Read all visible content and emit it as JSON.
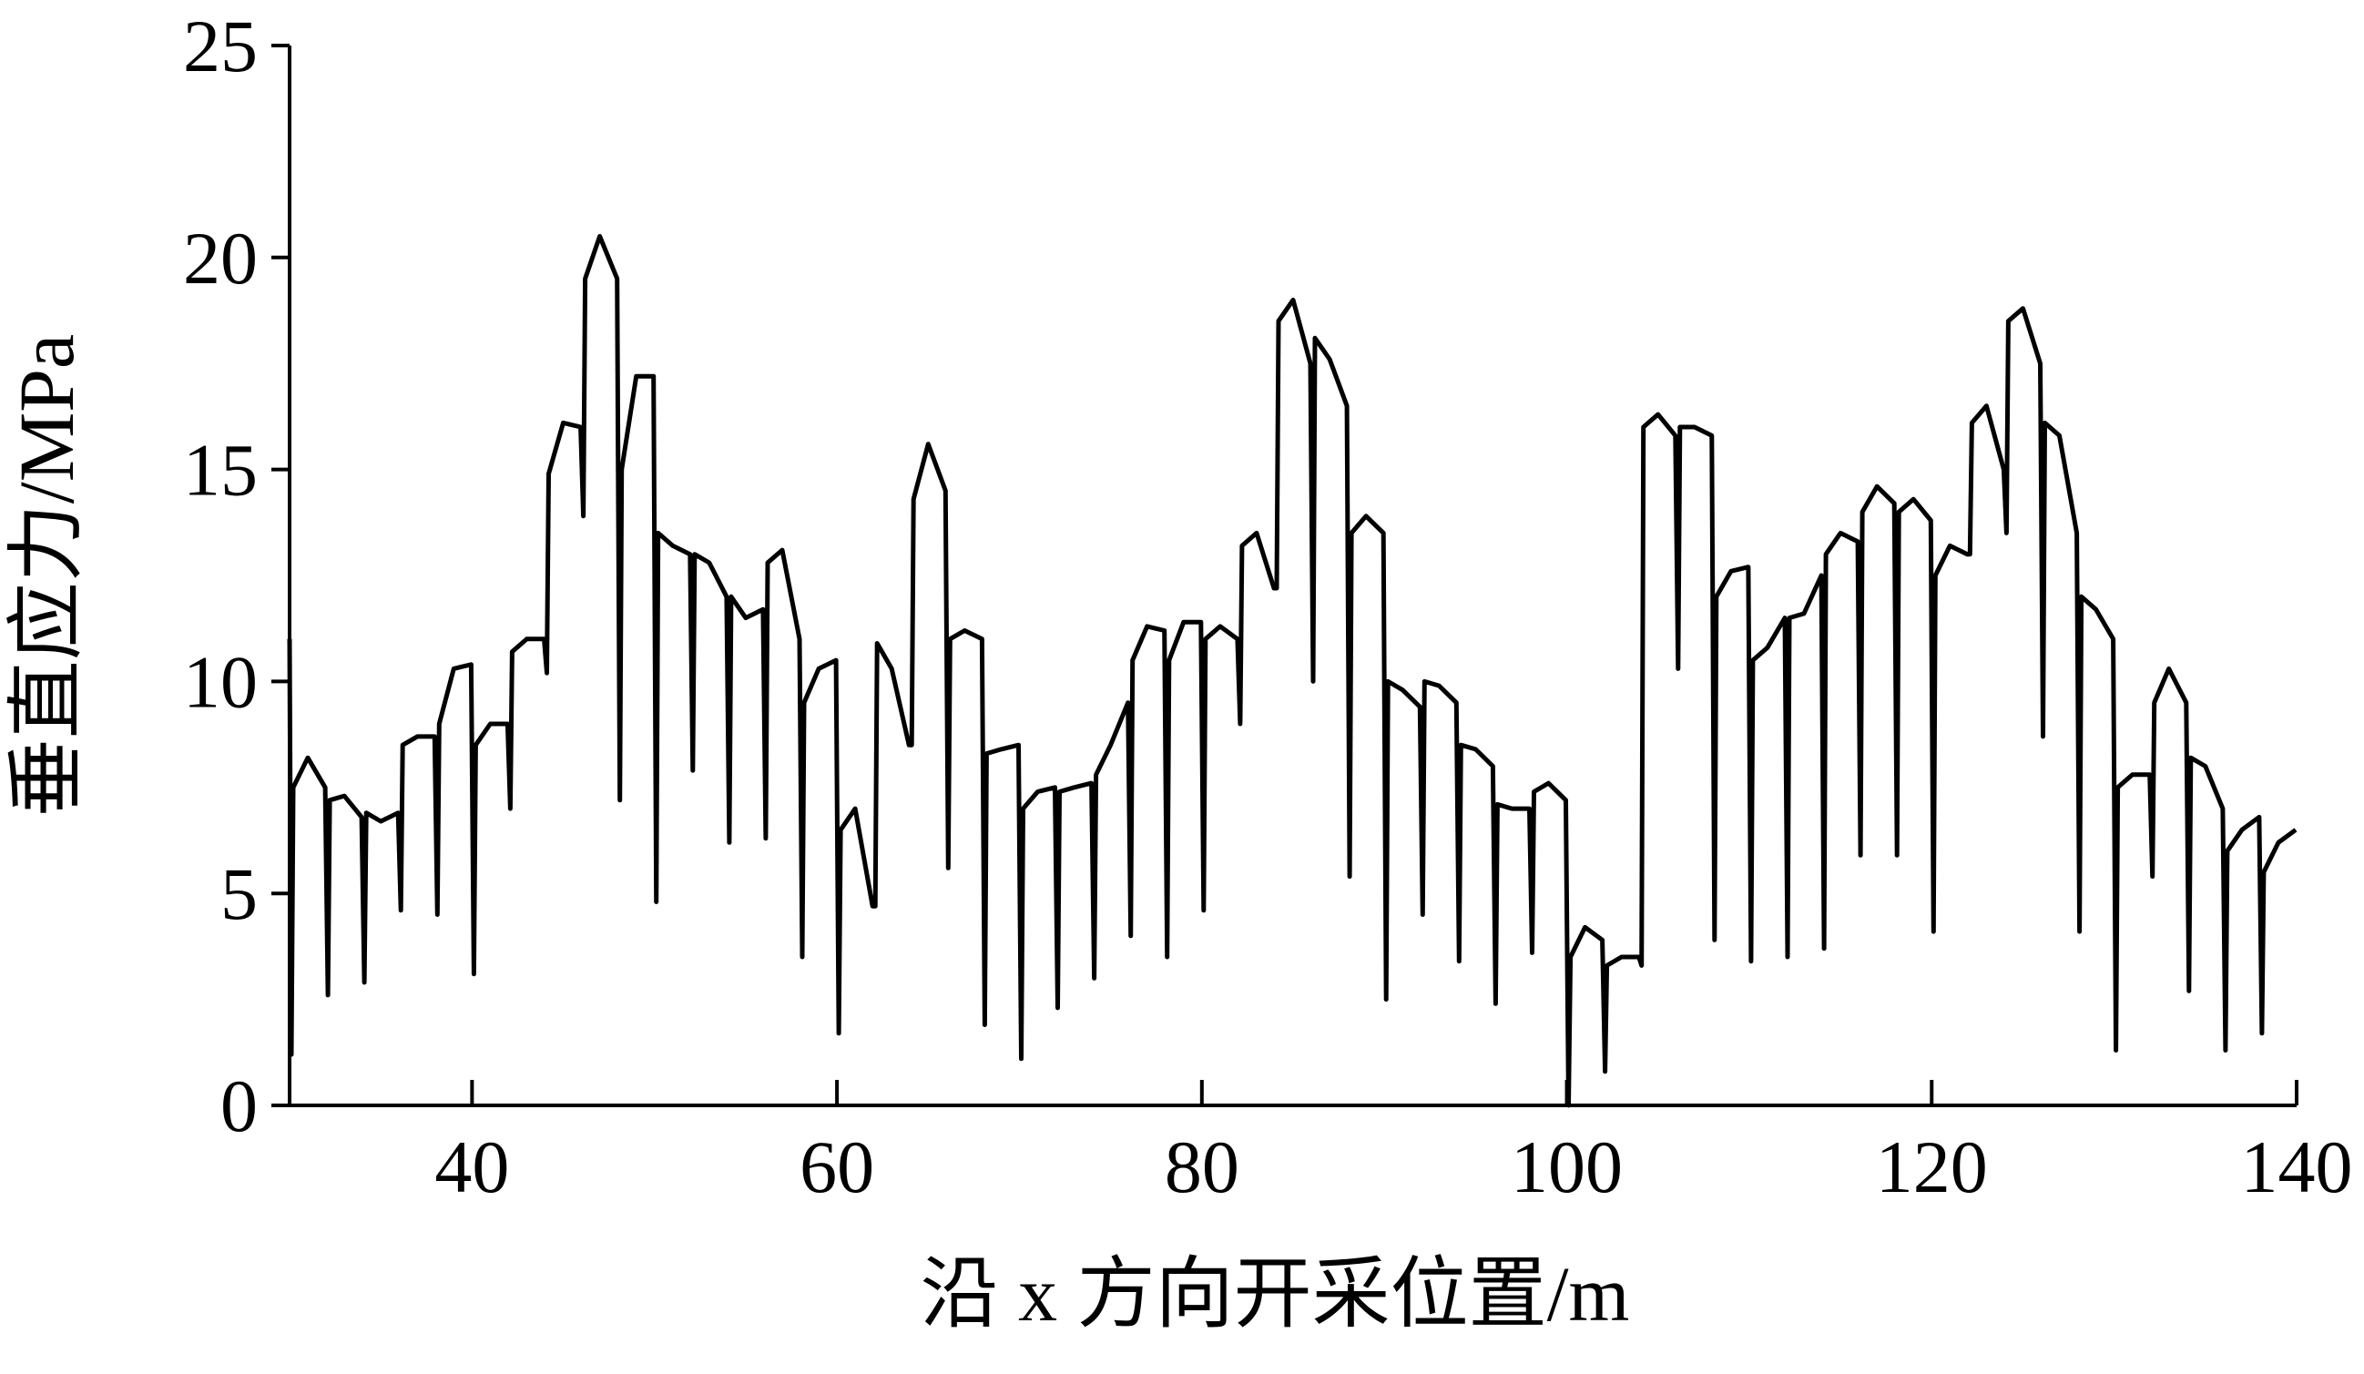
{
  "chart_data": {
    "type": "line",
    "xlabel": "沿 x 方向开采位置/m",
    "ylabel": "垂直应力/MPa",
    "xlim": [
      30,
      140
    ],
    "xticks": [
      40,
      60,
      80,
      100,
      120,
      140
    ],
    "ylim": [
      0,
      25
    ],
    "yticks": [
      0,
      5,
      10,
      15,
      20,
      25
    ],
    "grid": false,
    "series": [
      {
        "color": "#000000",
        "x": [
          30,
          30.1,
          30.2,
          31,
          31.95,
          32.1,
          32.2,
          33,
          33.95,
          34.1,
          34.2,
          35,
          35.95,
          36.1,
          36.2,
          37,
          37.95,
          38.1,
          38.2,
          39,
          39.95,
          40.1,
          40.2,
          41,
          41.95,
          42.1,
          42.2,
          43,
          43.95,
          44.1,
          44.2,
          45,
          45.95,
          46.1,
          46.2,
          47,
          47.95,
          48.1,
          48.2,
          49,
          49.95,
          50.1,
          50.2,
          51,
          51.95,
          52.1,
          52.2,
          53,
          53.95,
          54.1,
          54.2,
          55,
          55.95,
          56.1,
          56.2,
          57,
          57.95,
          58.1,
          58.2,
          59,
          59.95,
          60.1,
          60.2,
          61,
          61.95,
          62.1,
          62.2,
          63,
          63.95,
          64.1,
          64.2,
          65,
          65.95,
          66.1,
          66.2,
          67,
          67.95,
          68.1,
          68.2,
          69,
          69.95,
          70.1,
          70.2,
          71,
          71.95,
          72.1,
          72.2,
          73,
          73.95,
          74.1,
          74.2,
          75,
          75.95,
          76.1,
          76.2,
          77,
          77.95,
          78.1,
          78.2,
          79,
          79.95,
          80.1,
          80.2,
          81,
          81.95,
          82.1,
          82.2,
          83,
          83.95,
          84.1,
          84.2,
          85,
          85.95,
          86.1,
          86.2,
          87,
          87.95,
          88.1,
          88.2,
          89,
          89.95,
          90.1,
          90.2,
          91,
          91.95,
          92.1,
          92.2,
          93,
          93.95,
          94.1,
          94.2,
          95,
          95.95,
          96.1,
          96.2,
          97,
          97.95,
          98.1,
          98.2,
          99,
          99.95,
          100.1,
          100.2,
          101,
          101.95,
          102.1,
          102.2,
          103,
          103.95,
          104.1,
          104.2,
          105,
          105.95,
          106.1,
          106.2,
          107,
          107.95,
          108.1,
          108.2,
          109,
          109.95,
          110.1,
          110.2,
          111,
          111.95,
          112.1,
          112.2,
          113,
          113.95,
          114.1,
          114.2,
          115,
          115.95,
          116.1,
          116.2,
          117,
          117.95,
          118.1,
          118.2,
          119,
          119.95,
          120.1,
          120.2,
          121,
          121.95,
          122.1,
          122.2,
          123,
          123.95,
          124.1,
          124.2,
          125,
          125.95,
          126.1,
          126.2,
          127,
          127.95,
          128.1,
          128.2,
          129,
          129.95,
          130.1,
          130.2,
          131,
          131.95,
          132.1,
          132.2,
          133,
          133.95,
          134.1,
          134.2,
          135,
          135.95,
          136.1,
          136.2,
          137,
          137.95,
          138.1,
          138.2,
          139,
          139.95
        ],
        "values": [
          11,
          1.2,
          7.5,
          8.2,
          7.5,
          2.6,
          7.2,
          7.3,
          6.8,
          2.9,
          6.9,
          6.7,
          6.9,
          4.6,
          8.5,
          8.7,
          8.7,
          4.5,
          9.0,
          10.3,
          10.4,
          3.1,
          8.5,
          9.0,
          9.0,
          7.0,
          10.7,
          11.0,
          11.0,
          10.2,
          14.9,
          16.1,
          16.0,
          13.9,
          19.5,
          20.5,
          19.5,
          7.2,
          15.0,
          17.2,
          17.2,
          4.8,
          13.5,
          13.2,
          13.0,
          7.9,
          13.0,
          12.8,
          12.0,
          6.2,
          12.0,
          11.5,
          11.7,
          6.3,
          12.8,
          13.1,
          11.0,
          3.5,
          9.5,
          10.3,
          10.5,
          1.7,
          6.5,
          7.0,
          4.7,
          4.7,
          10.9,
          10.3,
          8.5,
          8.5,
          14.3,
          15.6,
          14.5,
          5.6,
          11.0,
          11.2,
          11.0,
          1.9,
          8.3,
          8.4,
          8.5,
          1.1,
          7.0,
          7.4,
          7.5,
          2.3,
          7.4,
          7.5,
          7.6,
          3.0,
          7.8,
          8.5,
          9.5,
          4.0,
          10.5,
          11.3,
          11.2,
          3.5,
          10.5,
          11.4,
          11.4,
          4.6,
          11.0,
          11.3,
          11.0,
          9.0,
          13.2,
          13.5,
          12.2,
          12.2,
          18.5,
          19.0,
          17.5,
          10.0,
          18.1,
          17.6,
          16.5,
          5.4,
          13.5,
          13.9,
          13.5,
          2.5,
          10.0,
          9.8,
          9.4,
          4.5,
          10.0,
          9.9,
          9.5,
          3.4,
          8.5,
          8.4,
          8.0,
          2.4,
          7.1,
          7.0,
          7.0,
          3.6,
          7.4,
          7.6,
          7.2,
          0,
          3.5,
          4.2,
          3.9,
          0.8,
          3.3,
          3.5,
          3.5,
          3.3,
          16.0,
          16.3,
          15.8,
          10.3,
          16.0,
          16.0,
          15.8,
          3.9,
          12.0,
          12.6,
          12.7,
          3.4,
          10.5,
          10.8,
          11.5,
          3.5,
          11.5,
          11.6,
          12.5,
          3.7,
          13.0,
          13.5,
          13.3,
          5.9,
          14.0,
          14.6,
          14.2,
          5.9,
          14.0,
          14.3,
          13.8,
          4.1,
          12.5,
          13.2,
          13.0,
          13.0,
          16.1,
          16.5,
          15.0,
          13.5,
          18.5,
          18.8,
          17.5,
          8.7,
          16.1,
          15.8,
          13.5,
          4.1,
          12.0,
          11.7,
          11.0,
          1.3,
          7.5,
          7.8,
          7.8,
          5.4,
          9.5,
          10.3,
          9.5,
          2.7,
          8.2,
          8.0,
          7.0,
          1.3,
          6.0,
          6.5,
          6.8,
          1.7,
          5.5,
          6.2,
          6.5
        ]
      }
    ]
  }
}
